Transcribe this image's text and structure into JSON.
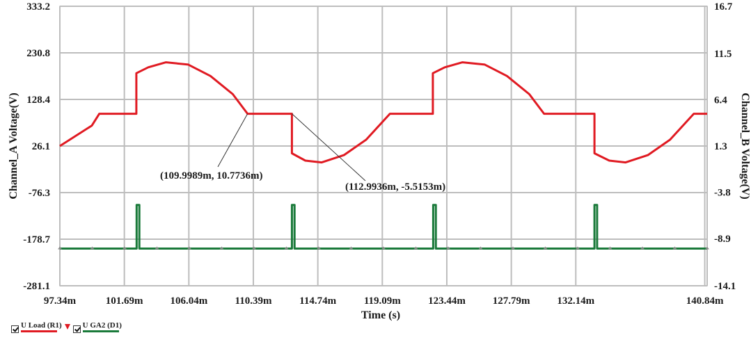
{
  "chart_data": {
    "type": "line",
    "xlabel": "Time (s)",
    "ylabel_left": "Channel_A Voltage(V)",
    "ylabel_right": "Channel_B Voltage(V)",
    "x_ticks": [
      "97.34m",
      "101.69m",
      "106.04m",
      "110.39m",
      "114.74m",
      "119.09m",
      "123.44m",
      "127.79m",
      "132.14m",
      "140.84m"
    ],
    "x_tick_values": [
      97.34,
      101.69,
      106.04,
      110.39,
      114.74,
      119.09,
      123.44,
      127.79,
      132.14,
      140.84
    ],
    "xlim": [
      97.34,
      141.0
    ],
    "y_left_ticks": [
      "333.2",
      "230.8",
      "128.4",
      "26.1",
      "-76.3",
      "-178.7",
      "-281.1"
    ],
    "y_left_tick_values": [
      333.2,
      230.8,
      128.4,
      26.1,
      -76.3,
      -178.7,
      -281.1
    ],
    "y_left_lim": [
      -281.1,
      333.2
    ],
    "y_right_ticks": [
      "16.7",
      "11.5",
      "6.4",
      "1.3",
      "-3.8",
      "-8.9",
      "-14.1"
    ],
    "y_right_tick_values": [
      16.7,
      11.5,
      6.4,
      1.3,
      -3.8,
      -8.9,
      -14.1
    ],
    "y_right_lim": [
      -14.1,
      16.7
    ],
    "grid": true,
    "series": [
      {
        "name": "U Load (R1)",
        "color": "#e01a22",
        "axis": "left",
        "x": [
          97.34,
          99.5,
          100.0,
          102.5,
          102.5,
          103.3,
          104.5,
          106.0,
          107.5,
          109.0,
          110.0,
          112.99,
          112.99,
          113.9,
          115.0,
          116.5,
          118.0,
          119.6,
          120.6,
          122.5,
          122.5,
          123.3,
          124.5,
          126.0,
          127.5,
          129.0,
          130.0,
          133.4,
          133.4,
          134.4,
          135.5,
          137.0,
          138.5,
          140.1,
          141.0
        ],
        "y": [
          26.1,
          71.0,
          97.0,
          97.0,
          186.0,
          199.0,
          210.0,
          205.0,
          180.0,
          140.0,
          97.0,
          97.0,
          10.0,
          -6.0,
          -10.0,
          6.0,
          40.0,
          97.0,
          97.0,
          97.0,
          186.0,
          199.0,
          210.0,
          205.0,
          180.0,
          140.0,
          97.0,
          97.0,
          10.0,
          -6.0,
          -10.0,
          6.0,
          40.0,
          97.0,
          97.0
        ]
      },
      {
        "name": "U GA2 (D1)",
        "color": "#1a7a3a",
        "axis": "right",
        "x": [
          97.34,
          102.52,
          102.52,
          102.7,
          102.7,
          112.99,
          112.99,
          113.17,
          113.17,
          122.52,
          122.52,
          122.7,
          122.7,
          133.4,
          133.4,
          133.58,
          133.58,
          141.0
        ],
        "y": [
          -10.0,
          -10.0,
          -5.2,
          -5.2,
          -10.0,
          -10.0,
          -5.2,
          -5.2,
          -10.0,
          -10.0,
          -5.2,
          -5.2,
          -10.0,
          -10.0,
          -5.2,
          -5.2,
          -10.0,
          -10.0
        ]
      }
    ],
    "annotations": [
      {
        "text": "(109.9989m, 10.7736m)",
        "x": 109.9989,
        "y": 97.0
      },
      {
        "text": "(112.9936m, -5.5153m)",
        "x": 112.9936,
        "y": 97.0
      }
    ],
    "legend": [
      {
        "label": "U Load (R1)",
        "color": "#e01a22"
      },
      {
        "label": "U GA2 (D1)",
        "color": "#1a7a3a"
      }
    ]
  }
}
